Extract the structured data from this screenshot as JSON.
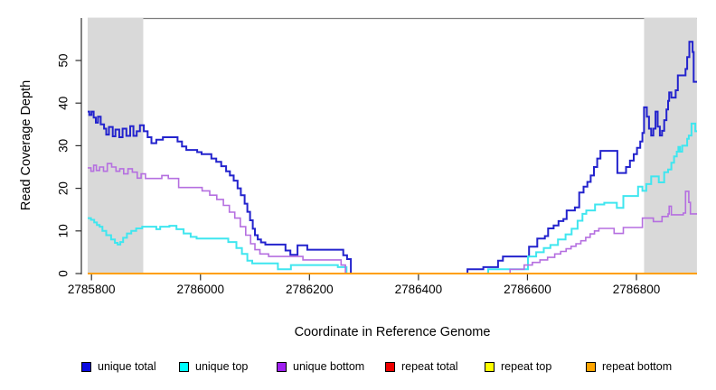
{
  "chart_data": {
    "type": "line",
    "subtype": "step",
    "title": "",
    "xlabel": "Coordinate in Reference Genome",
    "ylabel": "Read Coverage Depth",
    "xlim": [
      2785793,
      2786911
    ],
    "ylim": [
      0,
      59
    ],
    "grid": false,
    "x_ticks": [
      2785800,
      2786000,
      2786200,
      2786400,
      2786600,
      2786800
    ],
    "y_ticks": [
      0,
      10,
      20,
      30,
      40,
      50
    ],
    "shaded_regions": [
      {
        "name": "left-gray-band",
        "x0": 2785793,
        "x1": 2785895,
        "color": "#d9d9d9"
      },
      {
        "name": "right-gray-band",
        "x0": 2786814,
        "x1": 2786911,
        "color": "#d9d9d9"
      }
    ],
    "legend": {
      "position": "bottom",
      "entries": [
        {
          "label": "unique total",
          "fill": "#0a0ae0",
          "border": "#000000"
        },
        {
          "label": "unique top",
          "fill": "#00ffff",
          "border": "#000000"
        },
        {
          "label": "unique bottom",
          "fill": "#a020f0",
          "border": "#000000"
        },
        {
          "label": "repeat total",
          "fill": "#ee0000",
          "border": "#000000"
        },
        {
          "label": "repeat top",
          "fill": "#ffff00",
          "border": "#000000"
        },
        {
          "label": "repeat bottom",
          "fill": "#ffa500",
          "border": "#000000"
        }
      ]
    },
    "series": [
      {
        "name": "unique total",
        "color": "#2323cd",
        "width": 2,
        "step_points": [
          [
            2785793,
            38
          ],
          [
            2785796,
            37.2
          ],
          [
            2785800,
            38
          ],
          [
            2785804,
            36.6
          ],
          [
            2785808,
            35.4
          ],
          [
            2785812,
            36.8
          ],
          [
            2785817,
            35
          ],
          [
            2785823,
            34
          ],
          [
            2785827,
            32.6
          ],
          [
            2785832,
            34.4
          ],
          [
            2785839,
            32.2
          ],
          [
            2785844,
            33.8
          ],
          [
            2785851,
            32
          ],
          [
            2785857,
            34
          ],
          [
            2785864,
            32.3
          ],
          [
            2785871,
            34.6
          ],
          [
            2785877,
            32.3
          ],
          [
            2785883,
            33.4
          ],
          [
            2785889,
            34.8
          ],
          [
            2785896,
            33.4
          ],
          [
            2785903,
            32
          ],
          [
            2785910,
            30.6
          ],
          [
            2785919,
            31.4
          ],
          [
            2785931,
            32
          ],
          [
            2785958,
            31
          ],
          [
            2785966,
            29.8
          ],
          [
            2785974,
            29
          ],
          [
            2785994,
            28.5
          ],
          [
            2786002,
            28
          ],
          [
            2786020,
            27
          ],
          [
            2786029,
            26.2
          ],
          [
            2786038,
            25.2
          ],
          [
            2786047,
            24
          ],
          [
            2786054,
            23
          ],
          [
            2786061,
            21.8
          ],
          [
            2786068,
            20
          ],
          [
            2786074,
            18.4
          ],
          [
            2786081,
            16.4
          ],
          [
            2786086,
            14.5
          ],
          [
            2786091,
            12.5
          ],
          [
            2786096,
            10.5
          ],
          [
            2786100,
            9
          ],
          [
            2786105,
            8
          ],
          [
            2786111,
            7.3
          ],
          [
            2786119,
            6.8
          ],
          [
            2786156,
            5.4
          ],
          [
            2786165,
            4.4
          ],
          [
            2786178,
            6.6
          ],
          [
            2786196,
            5.6
          ],
          [
            2786262,
            4.3
          ],
          [
            2786269,
            3.4
          ],
          [
            2786276,
            0
          ],
          [
            2786490,
            1
          ],
          [
            2786519,
            1.5
          ],
          [
            2786546,
            3
          ],
          [
            2786555,
            4
          ],
          [
            2786603,
            6.3
          ],
          [
            2786618,
            8.2
          ],
          [
            2786632,
            8.8
          ],
          [
            2786638,
            10.6
          ],
          [
            2786648,
            11.3
          ],
          [
            2786657,
            12.3
          ],
          [
            2786666,
            12.8
          ],
          [
            2786672,
            14.8
          ],
          [
            2786687,
            15.5
          ],
          [
            2786695,
            19
          ],
          [
            2786703,
            20.4
          ],
          [
            2786710,
            21.5
          ],
          [
            2786716,
            23
          ],
          [
            2786722,
            25
          ],
          [
            2786728,
            27
          ],
          [
            2786734,
            28.8
          ],
          [
            2786765,
            23.6
          ],
          [
            2786781,
            25
          ],
          [
            2786788,
            26.5
          ],
          [
            2786795,
            28
          ],
          [
            2786801,
            29.5
          ],
          [
            2786807,
            31
          ],
          [
            2786811,
            33
          ],
          [
            2786814,
            39
          ],
          [
            2786819,
            36.8
          ],
          [
            2786823,
            34
          ],
          [
            2786827,
            32.4
          ],
          [
            2786831,
            34
          ],
          [
            2786835,
            38
          ],
          [
            2786839,
            34.5
          ],
          [
            2786843,
            32.4
          ],
          [
            2786847,
            33.5
          ],
          [
            2786851,
            36
          ],
          [
            2786855,
            38.5
          ],
          [
            2786858,
            40.5
          ],
          [
            2786860,
            42.5
          ],
          [
            2786864,
            41.3
          ],
          [
            2786872,
            43
          ],
          [
            2786876,
            46.5
          ],
          [
            2786890,
            48
          ],
          [
            2786893,
            50.8
          ],
          [
            2786897,
            54.4
          ],
          [
            2786903,
            52
          ],
          [
            2786905,
            45
          ],
          [
            2786911,
            45
          ]
        ]
      },
      {
        "name": "unique top",
        "color": "#3fe6ef",
        "width": 2,
        "step_points": [
          [
            2785793,
            13
          ],
          [
            2785799,
            12.6
          ],
          [
            2785805,
            12
          ],
          [
            2785810,
            11.4
          ],
          [
            2785815,
            11
          ],
          [
            2785820,
            10
          ],
          [
            2785827,
            9
          ],
          [
            2785836,
            8
          ],
          [
            2785843,
            7.2
          ],
          [
            2785848,
            6.8
          ],
          [
            2785853,
            7.4
          ],
          [
            2785858,
            8.4
          ],
          [
            2785865,
            9.4
          ],
          [
            2785873,
            10
          ],
          [
            2785882,
            10.6
          ],
          [
            2785893,
            11
          ],
          [
            2785919,
            10.4
          ],
          [
            2785926,
            11
          ],
          [
            2785943,
            11.2
          ],
          [
            2785956,
            10.4
          ],
          [
            2785969,
            9.4
          ],
          [
            2785982,
            8.6
          ],
          [
            2785993,
            8.2
          ],
          [
            2786051,
            7.4
          ],
          [
            2786066,
            6
          ],
          [
            2786076,
            4.6
          ],
          [
            2786086,
            3
          ],
          [
            2786095,
            2.4
          ],
          [
            2786142,
            1
          ],
          [
            2786166,
            2
          ],
          [
            2786252,
            1.5
          ],
          [
            2786268,
            0
          ],
          [
            2786528,
            1
          ],
          [
            2786601,
            4
          ],
          [
            2786616,
            5
          ],
          [
            2786630,
            6
          ],
          [
            2786642,
            6.7
          ],
          [
            2786656,
            8
          ],
          [
            2786670,
            9.2
          ],
          [
            2786681,
            10.5
          ],
          [
            2786692,
            12.4
          ],
          [
            2786701,
            14
          ],
          [
            2786708,
            14.8
          ],
          [
            2786724,
            16.2
          ],
          [
            2786741,
            16.6
          ],
          [
            2786764,
            15.4
          ],
          [
            2786776,
            18.2
          ],
          [
            2786803,
            20.4
          ],
          [
            2786811,
            19.4
          ],
          [
            2786818,
            21
          ],
          [
            2786827,
            22.8
          ],
          [
            2786841,
            21.4
          ],
          [
            2786851,
            23.8
          ],
          [
            2786858,
            24.4
          ],
          [
            2786864,
            26
          ],
          [
            2786869,
            27.5
          ],
          [
            2786874,
            28.6
          ],
          [
            2786877,
            29.7
          ],
          [
            2786880,
            28.6
          ],
          [
            2786884,
            30
          ],
          [
            2786893,
            31.6
          ],
          [
            2786896,
            32.4
          ],
          [
            2786901,
            35.2
          ],
          [
            2786908,
            33.4
          ],
          [
            2786911,
            33.4
          ]
        ]
      },
      {
        "name": "unique bottom",
        "color": "#b56fe0",
        "width": 1.6,
        "step_points": [
          [
            2785793,
            24.8
          ],
          [
            2785799,
            24
          ],
          [
            2785804,
            25.4
          ],
          [
            2785809,
            24.2
          ],
          [
            2785815,
            25
          ],
          [
            2785822,
            24
          ],
          [
            2785829,
            25.8
          ],
          [
            2785837,
            25
          ],
          [
            2785845,
            24
          ],
          [
            2785852,
            24.6
          ],
          [
            2785859,
            23.4
          ],
          [
            2785867,
            24.6
          ],
          [
            2785875,
            23.8
          ],
          [
            2785884,
            22.4
          ],
          [
            2785891,
            23.4
          ],
          [
            2785899,
            22.3
          ],
          [
            2785929,
            23
          ],
          [
            2785941,
            22.3
          ],
          [
            2785960,
            20.2
          ],
          [
            2786003,
            19.4
          ],
          [
            2786017,
            18.4
          ],
          [
            2786030,
            17.4
          ],
          [
            2786042,
            16
          ],
          [
            2786053,
            14.4
          ],
          [
            2786063,
            13
          ],
          [
            2786073,
            11
          ],
          [
            2786083,
            9
          ],
          [
            2786092,
            7
          ],
          [
            2786100,
            5.6
          ],
          [
            2786109,
            4.6
          ],
          [
            2786125,
            4
          ],
          [
            2786188,
            3.2
          ],
          [
            2786258,
            2
          ],
          [
            2786266,
            0
          ],
          [
            2786568,
            1
          ],
          [
            2786594,
            2
          ],
          [
            2786609,
            2.6
          ],
          [
            2786623,
            3.2
          ],
          [
            2786637,
            3.8
          ],
          [
            2786650,
            4.6
          ],
          [
            2786661,
            5.2
          ],
          [
            2786671,
            5.8
          ],
          [
            2786680,
            6.4
          ],
          [
            2786689,
            7
          ],
          [
            2786698,
            7.7
          ],
          [
            2786707,
            8.5
          ],
          [
            2786715,
            9.3
          ],
          [
            2786723,
            10
          ],
          [
            2786731,
            10.6
          ],
          [
            2786759,
            9.4
          ],
          [
            2786776,
            10.8
          ],
          [
            2786811,
            13
          ],
          [
            2786831,
            12.2
          ],
          [
            2786847,
            13.4
          ],
          [
            2786858,
            14
          ],
          [
            2786860,
            15.8
          ],
          [
            2786864,
            13.8
          ],
          [
            2786886,
            14.2
          ],
          [
            2786890,
            19.3
          ],
          [
            2786896,
            16.7
          ],
          [
            2786899,
            14
          ],
          [
            2786911,
            14
          ]
        ]
      },
      {
        "name": "repeat total",
        "color": "#ee0000",
        "width": 1.6,
        "step_points": [
          [
            2785793,
            0
          ],
          [
            2786911,
            0
          ]
        ]
      },
      {
        "name": "repeat top",
        "color": "#ffff00",
        "width": 1.6,
        "step_points": [
          [
            2785793,
            0
          ],
          [
            2786911,
            0
          ]
        ]
      },
      {
        "name": "repeat bottom",
        "color": "#ff9f00",
        "width": 2,
        "step_points": [
          [
            2785793,
            0
          ],
          [
            2786911,
            0
          ]
        ]
      }
    ]
  }
}
